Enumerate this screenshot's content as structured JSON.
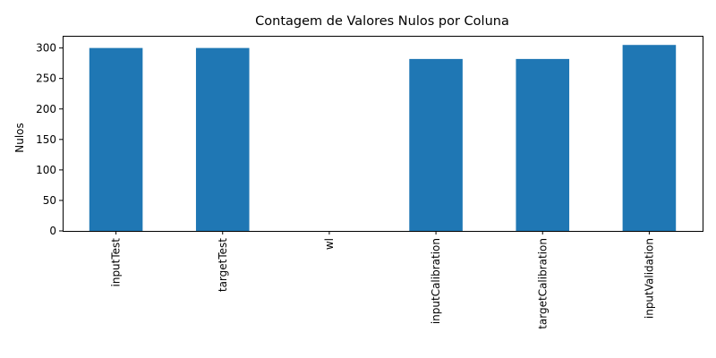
{
  "chart_data": {
    "type": "bar",
    "title": "Contagem de Valores Nulos por Coluna",
    "xlabel": "",
    "ylabel": "Nulos",
    "categories": [
      "inputTest",
      "targetTest",
      "wl",
      "inputCalibration",
      "targetCalibration",
      "inputValidation"
    ],
    "values": [
      300,
      300,
      0,
      282,
      282,
      305
    ],
    "ylim": [
      0,
      320
    ],
    "yticks": [
      0,
      50,
      100,
      150,
      200,
      250,
      300
    ],
    "grid": false,
    "legend": "none",
    "bar_color": "#1f77b4"
  }
}
